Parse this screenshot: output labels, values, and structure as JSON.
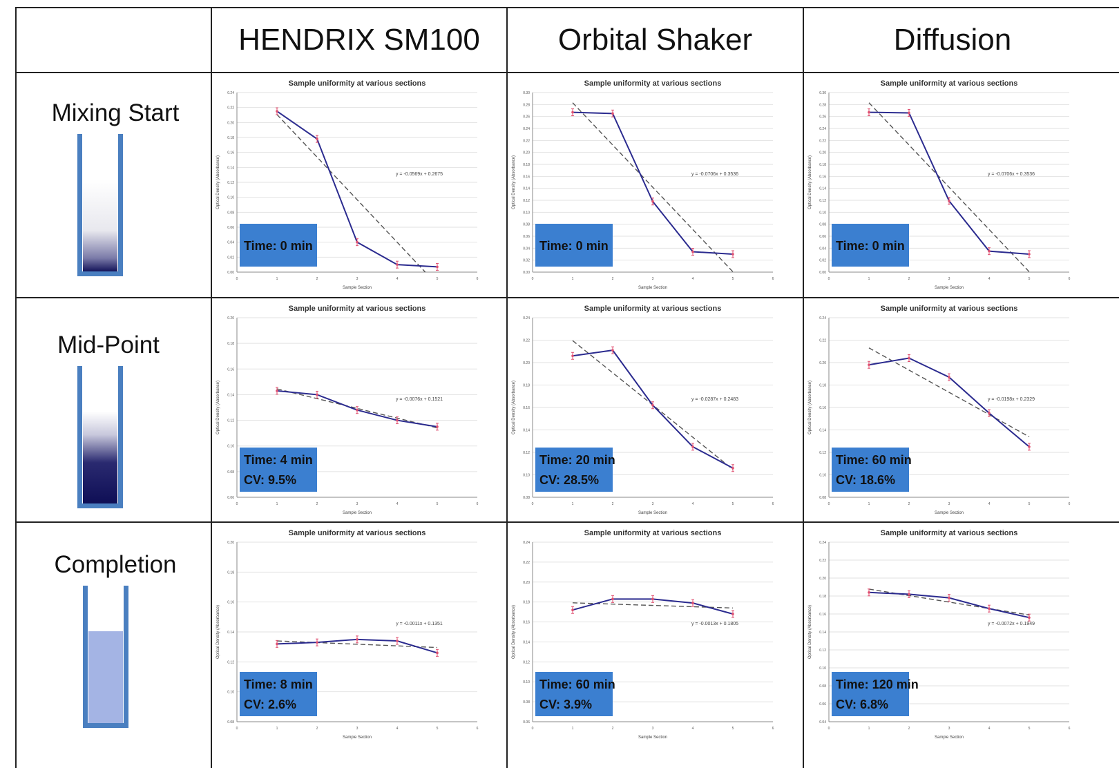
{
  "columns": [
    "HENDRIX SM100",
    "Orbital Shaker",
    "Diffusion"
  ],
  "rows": [
    "Mixing Start",
    "Mid-Point",
    "Completion"
  ],
  "colors": {
    "series": "#2b2b8f",
    "trend": "#555555",
    "error_bar": "#e05070",
    "label_box": "#3b7fd0",
    "vial_wall": "#4a7fc0"
  },
  "chart_data": [
    {
      "type": "line",
      "title": "Sample uniformity at various sections",
      "xlabel": "Sample Section",
      "ylabel": "Optical Density (Absorbance)",
      "x": [
        1,
        2,
        3,
        4,
        5
      ],
      "values": [
        0.215,
        0.178,
        0.04,
        0.01,
        0.007
      ],
      "xlim": [
        0,
        6
      ],
      "ylim": [
        0,
        0.24
      ],
      "yticks": [
        "0.00",
        "0.02",
        "0.04",
        "0.06",
        "0.08",
        "0.10",
        "0.12",
        "0.14",
        "0.16",
        "0.18",
        "0.20",
        "0.22",
        "0.24"
      ],
      "equation": "y = -0.0569x + 0.2675",
      "time": "Time: 0 min",
      "cv": ""
    },
    {
      "type": "line",
      "title": "Sample uniformity at various sections",
      "xlabel": "Sample Section",
      "ylabel": "Optical Density (Absorbance)",
      "x": [
        1,
        2,
        3,
        4,
        5
      ],
      "values": [
        0.267,
        0.265,
        0.118,
        0.034,
        0.03
      ],
      "xlim": [
        0,
        6
      ],
      "ylim": [
        0,
        0.3
      ],
      "yticks": [
        "0.00",
        "0.02",
        "0.04",
        "0.06",
        "0.08",
        "0.10",
        "0.12",
        "0.14",
        "0.16",
        "0.18",
        "0.20",
        "0.22",
        "0.24",
        "0.26",
        "0.28",
        "0.30"
      ],
      "equation": "y = -0.0706x + 0.3536",
      "time": "Time: 0 min",
      "cv": ""
    },
    {
      "type": "line",
      "title": "Sample uniformity at various sections",
      "xlabel": "Sample Section",
      "ylabel": "Optical Density (Absorbance)",
      "x": [
        1,
        2,
        3,
        4,
        5
      ],
      "values": [
        0.267,
        0.266,
        0.119,
        0.035,
        0.03
      ],
      "xlim": [
        0,
        6
      ],
      "ylim": [
        0,
        0.3
      ],
      "yticks": [
        "0.00",
        "0.02",
        "0.04",
        "0.06",
        "0.08",
        "0.10",
        "0.12",
        "0.14",
        "0.16",
        "0.18",
        "0.20",
        "0.22",
        "0.24",
        "0.26",
        "0.28",
        "0.30"
      ],
      "equation": "y = -0.0706x + 0.3536",
      "time": "Time: 0 min",
      "cv": ""
    },
    {
      "type": "line",
      "title": "Sample uniformity at various sections",
      "xlabel": "Sample Section",
      "ylabel": "Optical Density (Absorbance)",
      "x": [
        1,
        2,
        3,
        4,
        5
      ],
      "values": [
        0.143,
        0.14,
        0.128,
        0.12,
        0.115
      ],
      "xlim": [
        0,
        6
      ],
      "ylim": [
        0.06,
        0.2
      ],
      "yticks": [
        "0.06",
        "0.08",
        "0.10",
        "0.12",
        "0.14",
        "0.16",
        "0.18",
        "0.20"
      ],
      "equation": "y = -0.0076x + 0.1521",
      "time": "Time: 4 min",
      "cv": "CV: 9.5%"
    },
    {
      "type": "line",
      "title": "Sample uniformity at various sections",
      "xlabel": "Sample Section",
      "ylabel": "Optical Density (Absorbance)",
      "x": [
        1,
        2,
        3,
        4,
        5
      ],
      "values": [
        0.206,
        0.211,
        0.162,
        0.125,
        0.106
      ],
      "xlim": [
        0,
        6
      ],
      "ylim": [
        0.08,
        0.24
      ],
      "yticks": [
        "0.08",
        "0.10",
        "0.12",
        "0.14",
        "0.16",
        "0.18",
        "0.20",
        "0.22",
        "0.24"
      ],
      "equation": "y = -0.0287x + 0.2483",
      "time": "Time: 20 min",
      "cv": "CV: 28.5%"
    },
    {
      "type": "line",
      "title": "Sample uniformity at various sections",
      "xlabel": "Sample Section",
      "ylabel": "Optical Density (Absorbance)",
      "x": [
        1,
        2,
        3,
        4,
        5
      ],
      "values": [
        0.198,
        0.204,
        0.187,
        0.155,
        0.125
      ],
      "xlim": [
        0,
        6
      ],
      "ylim": [
        0.08,
        0.24
      ],
      "yticks": [
        "0.08",
        "0.10",
        "0.12",
        "0.14",
        "0.16",
        "0.18",
        "0.20",
        "0.22",
        "0.24"
      ],
      "equation": "y = -0.0198x + 0.2329",
      "time": "Time: 60 min",
      "cv": "CV: 18.6%"
    },
    {
      "type": "line",
      "title": "Sample uniformity at various sections",
      "xlabel": "Sample Section",
      "ylabel": "Optical Density (Absorbance)",
      "x": [
        1,
        2,
        3,
        4,
        5
      ],
      "values": [
        0.132,
        0.133,
        0.135,
        0.134,
        0.126
      ],
      "xlim": [
        0,
        6
      ],
      "ylim": [
        0.08,
        0.2
      ],
      "yticks": [
        "0.08",
        "0.10",
        "0.12",
        "0.14",
        "0.16",
        "0.18",
        "0.20"
      ],
      "equation": "y = -0.0011x + 0.1351",
      "time": "Time: 8 min",
      "cv": "CV: 2.6%"
    },
    {
      "type": "line",
      "title": "Sample uniformity at various sections",
      "xlabel": "Sample Section",
      "ylabel": "Optical Density (Absorbance)",
      "x": [
        1,
        2,
        3,
        4,
        5
      ],
      "values": [
        0.172,
        0.183,
        0.183,
        0.179,
        0.168
      ],
      "xlim": [
        0,
        6
      ],
      "ylim": [
        0.06,
        0.24
      ],
      "yticks": [
        "0.06",
        "0.08",
        "0.10",
        "0.12",
        "0.14",
        "0.16",
        "0.18",
        "0.20",
        "0.22",
        "0.24"
      ],
      "equation": "y = -0.0013x + 0.1805",
      "time": "Time: 60 min",
      "cv": "CV: 3.9%"
    },
    {
      "type": "line",
      "title": "Sample uniformity at various sections",
      "xlabel": "Sample Section",
      "ylabel": "Optical Density (Absorbance)",
      "x": [
        1,
        2,
        3,
        4,
        5
      ],
      "values": [
        0.184,
        0.182,
        0.178,
        0.166,
        0.156
      ],
      "xlim": [
        0,
        6
      ],
      "ylim": [
        0.04,
        0.24
      ],
      "yticks": [
        "0.04",
        "0.06",
        "0.08",
        "0.10",
        "0.12",
        "0.14",
        "0.16",
        "0.18",
        "0.20",
        "0.22",
        "0.24"
      ],
      "equation": "y = -0.0072x + 0.1949",
      "time": "Time: 120 min",
      "cv": "CV: 6.8%"
    }
  ]
}
